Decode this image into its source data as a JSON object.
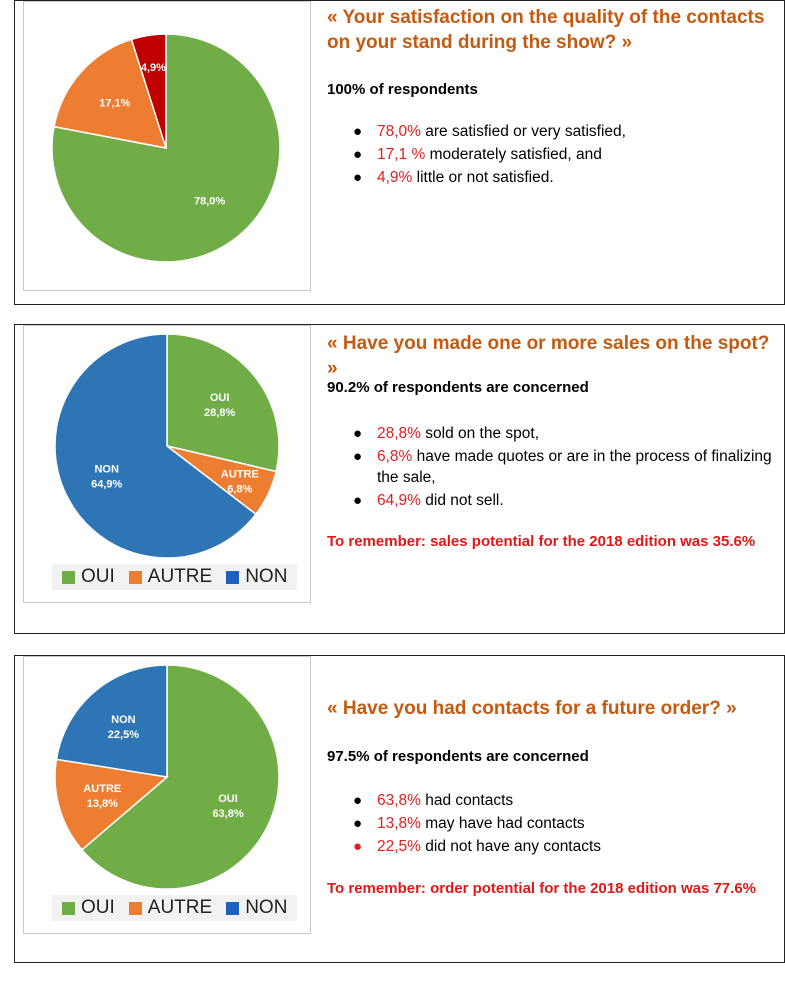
{
  "colors": {
    "green": "#70ad47",
    "orange": "#ed7d31",
    "red": "#c00000",
    "blue": "#2e75b6",
    "legend_blue": "#1f5fbf"
  },
  "panels": [
    {
      "question": "« Your satisfaction on the quality of the contacts on your stand during the show? »",
      "concerned": "100% of respondents",
      "bullets": [
        {
          "pct": "78,0%",
          "text": " are satisfied or very satisfied,"
        },
        {
          "pct": "17,1 %",
          "text": " moderately satisfied, and"
        },
        {
          "pct": "4,9%",
          "text": " little or not satisfied."
        }
      ],
      "remember": ""
    },
    {
      "question": "« Have you made one or more sales on the spot? »",
      "concerned": "90.2% of respondents are concerned",
      "bullets": [
        {
          "pct": "28,8%",
          "text": " sold on the spot,"
        },
        {
          "pct": "6,8%",
          "text": " have made quotes or are in the process of finalizing the sale,"
        },
        {
          "pct": "64,9%",
          "text": " did not sell."
        }
      ],
      "remember": "To remember: sales potential for the 2018 edition was 35.6%"
    },
    {
      "question": "« Have you had contacts for a future order? »",
      "concerned": "97.5% of respondents are concerned",
      "bullets": [
        {
          "pct": "63,8%",
          "text": " had contacts"
        },
        {
          "pct": "13,8%",
          "text": " may have had contacts"
        },
        {
          "pct": "22,5%",
          "text": " did not have any contacts"
        }
      ],
      "remember": "To remember: order potential for the 2018 edition was 77.6%"
    }
  ],
  "chart_data": [
    {
      "type": "pie",
      "title": "",
      "slices": [
        {
          "name": "",
          "value": 78.0,
          "label": "78,0%",
          "color": "#70ad47"
        },
        {
          "name": "",
          "value": 17.1,
          "label": "17,1%",
          "color": "#ed7d31"
        },
        {
          "name": "",
          "value": 4.9,
          "label": "4,9%",
          "color": "#c00000"
        }
      ],
      "legend": []
    },
    {
      "type": "pie",
      "title": "",
      "slices": [
        {
          "name": "OUI",
          "value": 28.8,
          "label": "28,8%",
          "color": "#70ad47"
        },
        {
          "name": "AUTRE",
          "value": 6.8,
          "label": "6,8%",
          "color": "#ed7d31"
        },
        {
          "name": "NON",
          "value": 64.9,
          "label": "64,9%",
          "color": "#2e75b6"
        }
      ],
      "legend": [
        {
          "name": "OUI",
          "color": "#70ad47"
        },
        {
          "name": "AUTRE",
          "color": "#ed7d31"
        },
        {
          "name": "NON",
          "color": "#1f5fbf"
        }
      ],
      "legend_position": "bottom"
    },
    {
      "type": "pie",
      "title": "",
      "slices": [
        {
          "name": "OUI",
          "value": 63.8,
          "label": "63,8%",
          "color": "#70ad47"
        },
        {
          "name": "AUTRE",
          "value": 13.8,
          "label": "13,8%",
          "color": "#ed7d31"
        },
        {
          "name": "NON",
          "value": 22.5,
          "label": "22,5%",
          "color": "#2e75b6"
        }
      ],
      "legend": [
        {
          "name": "OUI",
          "color": "#70ad47"
        },
        {
          "name": "AUTRE",
          "color": "#ed7d31"
        },
        {
          "name": "NON",
          "color": "#1f5fbf"
        }
      ],
      "legend_position": "bottom"
    }
  ]
}
